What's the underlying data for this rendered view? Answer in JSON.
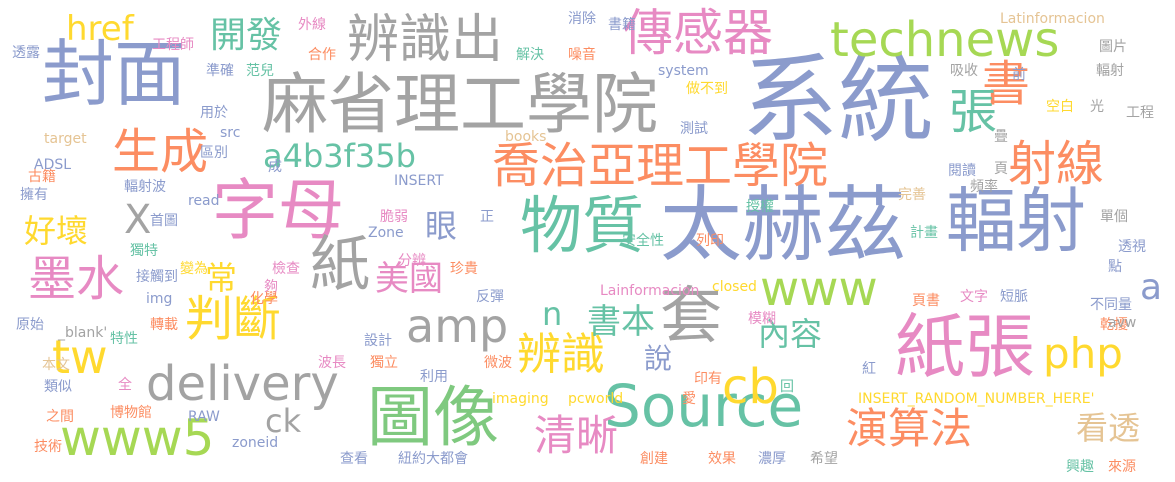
{
  "palette": {
    "gray": "#a3a3a3",
    "blue": "#8b9bcc",
    "green": "#7fc97f",
    "lime": "#a6d854",
    "orange": "#fc8d62",
    "pink": "#e78ac3",
    "yellow": "#ffd92f",
    "teal": "#66c2a5",
    "tan": "#e5c494"
  },
  "words": [
    {
      "text": "系統",
      "color": "blue"
    },
    {
      "text": "太赫茲",
      "color": "blue"
    },
    {
      "text": "麻省理工學院",
      "color": "gray"
    },
    {
      "text": "封面",
      "color": "blue"
    },
    {
      "text": "字母",
      "color": "pink"
    },
    {
      "text": "輻射",
      "color": "blue"
    },
    {
      "text": "紙張",
      "color": "pink"
    },
    {
      "text": "物質",
      "color": "teal"
    },
    {
      "text": "喬治亞理工學院",
      "color": "orange"
    },
    {
      "text": "圖像",
      "color": "green"
    },
    {
      "text": "Source",
      "color": "teal"
    },
    {
      "text": "delivery",
      "color": "gray"
    },
    {
      "text": "辨識出",
      "color": "gray"
    },
    {
      "text": "傳感器",
      "color": "pink"
    },
    {
      "text": "technews",
      "color": "lime"
    },
    {
      "text": "書",
      "color": "orange"
    },
    {
      "text": "生成",
      "color": "orange"
    },
    {
      "text": "張",
      "color": "teal"
    },
    {
      "text": "射線",
      "color": "orange"
    },
    {
      "text": "紙",
      "color": "gray"
    },
    {
      "text": "套",
      "color": "gray"
    },
    {
      "text": "amp",
      "color": "gray"
    },
    {
      "text": "www",
      "color": "lime"
    },
    {
      "text": "php",
      "color": "yellow"
    },
    {
      "text": "判斷",
      "color": "yellow"
    },
    {
      "text": "墨水",
      "color": "pink"
    },
    {
      "text": "辨識",
      "color": "yellow"
    },
    {
      "text": "清晰",
      "color": "pink"
    },
    {
      "text": "演算法",
      "color": "orange"
    },
    {
      "text": "cb",
      "color": "yellow"
    },
    {
      "text": "www5",
      "color": "lime"
    },
    {
      "text": "a4b3f35b",
      "color": "teal"
    },
    {
      "text": "開發",
      "color": "teal"
    },
    {
      "text": "href",
      "color": "yellow"
    },
    {
      "text": "tw",
      "color": "yellow"
    },
    {
      "text": "美國",
      "color": "pink"
    },
    {
      "text": "書本",
      "color": "teal"
    },
    {
      "text": "內容",
      "color": "teal"
    },
    {
      "text": "好壞",
      "color": "yellow"
    },
    {
      "text": "眼",
      "color": "blue"
    },
    {
      "text": "X",
      "color": "gray"
    },
    {
      "text": "常",
      "color": "yellow"
    },
    {
      "text": "看透",
      "color": "tan"
    },
    {
      "text": "ck",
      "color": "gray"
    },
    {
      "text": "說",
      "color": "blue"
    },
    {
      "text": "n",
      "color": "teal"
    },
    {
      "text": "a",
      "color": "blue"
    },
    {
      "text": "透露",
      "color": "blue"
    },
    {
      "text": "工程師",
      "color": "pink"
    },
    {
      "text": "外線",
      "color": "pink"
    },
    {
      "text": "消除",
      "color": "blue"
    },
    {
      "text": "書籍",
      "color": "blue"
    },
    {
      "text": "Latinformacion",
      "color": "tan"
    },
    {
      "text": "合作",
      "color": "orange"
    },
    {
      "text": "解決",
      "color": "teal"
    },
    {
      "text": "噪音",
      "color": "orange"
    },
    {
      "text": "圖片",
      "color": "gray"
    },
    {
      "text": "準確",
      "color": "blue"
    },
    {
      "text": "范兒",
      "color": "teal"
    },
    {
      "text": "system",
      "color": "blue"
    },
    {
      "text": "吸收",
      "color": "gray"
    },
    {
      "text": "前",
      "color": "blue"
    },
    {
      "text": "輻射",
      "color": "gray"
    },
    {
      "text": "用於",
      "color": "blue"
    },
    {
      "text": "做不到",
      "color": "yellow"
    },
    {
      "text": "空白",
      "color": "yellow"
    },
    {
      "text": "光",
      "color": "gray"
    },
    {
      "text": "工程",
      "color": "gray"
    },
    {
      "text": "target",
      "color": "tan"
    },
    {
      "text": "src",
      "color": "blue"
    },
    {
      "text": "books",
      "color": "tan"
    },
    {
      "text": "測試",
      "color": "blue"
    },
    {
      "text": "ADSL",
      "color": "blue"
    },
    {
      "text": "區別",
      "color": "blue"
    },
    {
      "text": "成",
      "color": "blue"
    },
    {
      "text": "閱讀",
      "color": "blue"
    },
    {
      "text": "疊",
      "color": "gray"
    },
    {
      "text": "頁",
      "color": "gray"
    },
    {
      "text": "古籍",
      "color": "orange"
    },
    {
      "text": "INSERT",
      "color": "blue"
    },
    {
      "text": "頻率",
      "color": "gray"
    },
    {
      "text": "擁有",
      "color": "blue"
    },
    {
      "text": "輻射波",
      "color": "blue"
    },
    {
      "text": "read",
      "color": "blue"
    },
    {
      "text": "完善",
      "color": "tan"
    },
    {
      "text": "首圖",
      "color": "blue"
    },
    {
      "text": "脆弱",
      "color": "pink"
    },
    {
      "text": "正",
      "color": "blue"
    },
    {
      "text": "授權",
      "color": "teal"
    },
    {
      "text": "單個",
      "color": "gray"
    },
    {
      "text": "Zone",
      "color": "blue"
    },
    {
      "text": "計畫",
      "color": "teal"
    },
    {
      "text": "列印",
      "color": "orange"
    },
    {
      "text": "獨特",
      "color": "teal"
    },
    {
      "text": "安全性",
      "color": "teal"
    },
    {
      "text": "透視",
      "color": "blue"
    },
    {
      "text": "點",
      "color": "blue"
    },
    {
      "text": "變為",
      "color": "yellow"
    },
    {
      "text": "檢查",
      "color": "pink"
    },
    {
      "text": "夠",
      "color": "pink"
    },
    {
      "text": "分辨",
      "color": "pink"
    },
    {
      "text": "接觸到",
      "color": "blue"
    },
    {
      "text": "珍貴",
      "color": "orange"
    },
    {
      "text": "文字",
      "color": "pink"
    },
    {
      "text": "頁書",
      "color": "orange"
    },
    {
      "text": "短脈",
      "color": "blue"
    },
    {
      "text": "img",
      "color": "blue"
    },
    {
      "text": "化學",
      "color": "orange"
    },
    {
      "text": "Lainformacion",
      "color": "pink"
    },
    {
      "text": "closed",
      "color": "yellow"
    },
    {
      "text": "反彈",
      "color": "blue"
    },
    {
      "text": "原始",
      "color": "blue"
    },
    {
      "text": "轉載",
      "color": "orange"
    },
    {
      "text": "_blank'",
      "color": "gray"
    },
    {
      "text": "不同量",
      "color": "blue"
    },
    {
      "text": "模糊",
      "color": "pink"
    },
    {
      "text": "乾擾",
      "color": "orange"
    },
    {
      "text": "avw",
      "color": "gray"
    },
    {
      "text": "本文",
      "color": "tan"
    },
    {
      "text": "特性",
      "color": "teal"
    },
    {
      "text": "設計",
      "color": "blue"
    },
    {
      "text": "波長",
      "color": "pink"
    },
    {
      "text": "獨立",
      "color": "orange"
    },
    {
      "text": "微波",
      "color": "orange"
    },
    {
      "text": "紅",
      "color": "blue"
    },
    {
      "text": "類似",
      "color": "blue"
    },
    {
      "text": "全",
      "color": "pink"
    },
    {
      "text": "利用",
      "color": "blue"
    },
    {
      "text": "印有",
      "color": "orange"
    },
    {
      "text": "回",
      "color": "teal"
    },
    {
      "text": "INSERT_RANDOM_NUMBER_HERE'",
      "color": "yellow"
    },
    {
      "text": "之間",
      "color": "orange"
    },
    {
      "text": "博物館",
      "color": "orange"
    },
    {
      "text": "RAW",
      "color": "blue"
    },
    {
      "text": "imaging",
      "color": "yellow"
    },
    {
      "text": "pcworld",
      "color": "yellow"
    },
    {
      "text": "愛",
      "color": "orange"
    },
    {
      "text": "技術",
      "color": "orange"
    },
    {
      "text": "zoneid",
      "color": "blue"
    },
    {
      "text": "查看",
      "color": "blue"
    },
    {
      "text": "紐約大都會",
      "color": "blue"
    },
    {
      "text": "創建",
      "color": "orange"
    },
    {
      "text": "效果",
      "color": "orange"
    },
    {
      "text": "濃厚",
      "color": "blue"
    },
    {
      "text": "希望",
      "color": "gray"
    },
    {
      "text": "興趣",
      "color": "teal"
    },
    {
      "text": "來源",
      "color": "orange"
    }
  ]
}
